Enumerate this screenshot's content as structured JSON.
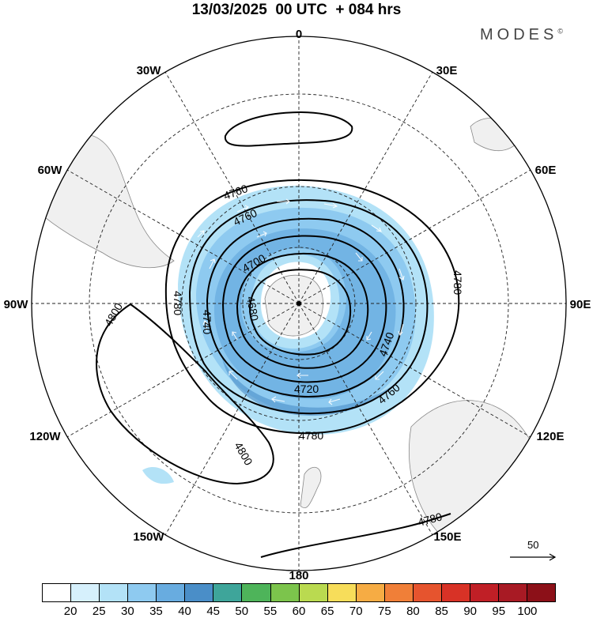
{
  "header": {
    "title": "13/03/2025  00 UTC  + 084 hrs",
    "brand": "MODES",
    "brand_mark": "©"
  },
  "map": {
    "projection": "south-polar-stereographic",
    "longitude_labels": [
      "0",
      "30E",
      "60E",
      "90E",
      "120E",
      "150E",
      "180",
      "150W",
      "120W",
      "90W",
      "60W",
      "30W"
    ],
    "contour_labels": [
      "4680",
      "4700",
      "4720",
      "4740",
      "4760",
      "4780",
      "4800"
    ],
    "land_color": "#f0f0f0",
    "contour_color": "#000000",
    "wind_vector_color": "#ffffff"
  },
  "reference_vector": {
    "label": "50"
  },
  "colorbar": {
    "colors": [
      "#ffffff",
      "#d6f0fc",
      "#b3e2f7",
      "#8ecaf0",
      "#68ace0",
      "#4a8ec8",
      "#3ea59a",
      "#4eb45a",
      "#7cc44c",
      "#bada50",
      "#f7dd5a",
      "#f6ac44",
      "#f07f38",
      "#e6542e",
      "#d83226",
      "#c01f26",
      "#a81a24",
      "#8c1018"
    ],
    "tick_labels": [
      "20",
      "25",
      "30",
      "35",
      "40",
      "45",
      "50",
      "55",
      "60",
      "65",
      "70",
      "75",
      "80",
      "85",
      "90",
      "95",
      "100"
    ]
  }
}
